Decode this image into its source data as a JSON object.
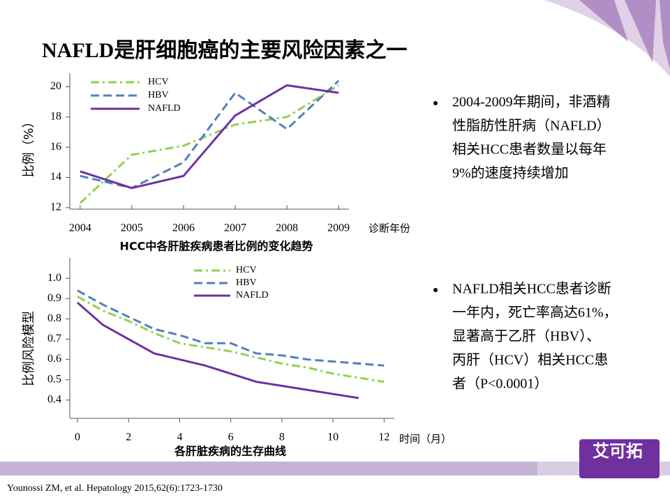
{
  "title": "NAFLD是肝细胞癌的主要风险因素之一",
  "chart_data": [
    {
      "type": "line",
      "caption": "HCC中各肝脏疾病患者比例的变化趋势",
      "y_label": "比例（%）",
      "x_label": "诊断年份",
      "x": [
        2004,
        2005,
        2006,
        2007,
        2008,
        2009
      ],
      "xlim": [
        2003.8,
        2009.2
      ],
      "xticks": [
        2004,
        2005,
        2006,
        2007,
        2008,
        2009
      ],
      "ylim": [
        11.9,
        20.9
      ],
      "yticks": [
        12,
        14,
        16,
        18,
        20
      ],
      "series": [
        {
          "name": "HCV",
          "color": "#92d050",
          "linestyle": "dashdot",
          "values": [
            12.3,
            15.5,
            16.1,
            17.5,
            18.0,
            20.1
          ]
        },
        {
          "name": "HBV",
          "color": "#4f81bd",
          "linestyle": "dashed",
          "values": [
            14.1,
            13.3,
            15.0,
            19.6,
            17.2,
            20.4
          ]
        },
        {
          "name": "NAFLD",
          "color": "#7030a0",
          "linestyle": "solid",
          "values": [
            14.4,
            13.3,
            14.1,
            18.1,
            20.1,
            19.6
          ]
        }
      ]
    },
    {
      "type": "line",
      "caption": "各肝脏疾病的生存曲线",
      "y_label": "比例风险模型",
      "x_label": "时间（月）",
      "x": [
        0,
        1,
        2,
        3,
        4,
        5,
        6,
        7,
        8,
        9,
        10,
        11,
        12
      ],
      "xlim": [
        -0.3,
        12.4
      ],
      "xticks": [
        0,
        2,
        4,
        6,
        8,
        10,
        12
      ],
      "ylim": [
        0.31,
        1.1
      ],
      "yticks": [
        0.4,
        0.5,
        0.6,
        0.7,
        0.8,
        0.9,
        {
          "value": 1,
          "label": "1.0"
        }
      ],
      "series": [
        {
          "name": "HCV",
          "color": "#92d050",
          "linestyle": "dashdot",
          "values": [
            0.91,
            0.84,
            0.79,
            0.73,
            0.68,
            0.66,
            0.64,
            0.61,
            0.58,
            0.56,
            0.53,
            0.51,
            0.49
          ]
        },
        {
          "name": "HBV",
          "color": "#4f81bd",
          "linestyle": "dashed",
          "values": [
            0.94,
            0.87,
            0.81,
            0.75,
            0.72,
            0.68,
            0.68,
            0.63,
            0.62,
            0.6,
            0.59,
            0.58,
            0.57
          ]
        },
        {
          "name": "NAFLD",
          "color": "#7030a0",
          "linestyle": "solid",
          "values": [
            0.88,
            0.77,
            0.7,
            0.63,
            0.6,
            0.57,
            0.53,
            0.49,
            0.47,
            0.45,
            0.43,
            0.41,
            null
          ]
        }
      ]
    }
  ],
  "bullets": [
    [
      "2004-2009年期间，非酒精",
      "性脂肪性肝病（NAFLD）",
      "相关HCC患者数量以每年",
      "9%的速度持续增加"
    ],
    [
      "NAFLD相关HCC患者诊断",
      "一年内，死亡率高达61%，",
      "显著高于乙肝（HBV）、",
      "丙肝（HCV）相关HCC患",
      "者（P<0.0001）"
    ]
  ],
  "citation": "Younossi ZM, et al. Hepatology 2015,62(6):1723-1730",
  "logo": "艾可拓"
}
